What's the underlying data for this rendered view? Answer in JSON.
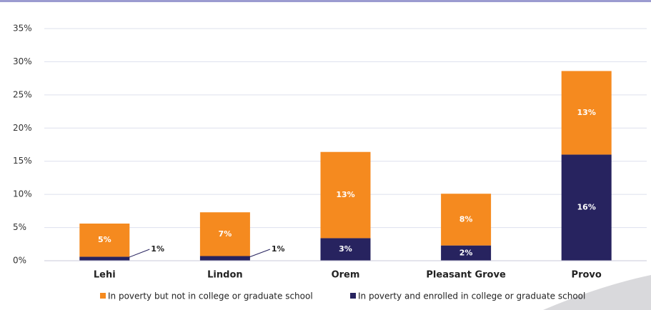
{
  "chart_data": {
    "type": "stacked-bar",
    "categories": [
      "Lehi",
      "Lindon",
      "Orem",
      "Pleasant Grove",
      "Provo"
    ],
    "series": [
      {
        "name": "In poverty and enrolled in college or graduate school",
        "color": "#27235f",
        "values": [
          0.6,
          0.7,
          3.4,
          2.3,
          16.0
        ],
        "value_labels": [
          "1%",
          "1%",
          "3%",
          "2%",
          "16%"
        ]
      },
      {
        "name": "In poverty but not in college or graduate school",
        "color": "#f58a1f",
        "values": [
          5.0,
          6.6,
          13.0,
          7.8,
          12.6
        ],
        "value_labels": [
          "5%",
          "7%",
          "13%",
          "8%",
          "13%"
        ]
      }
    ],
    "ylim": [
      0,
      35
    ],
    "yticks": [
      {
        "value": 0,
        "label": "0%"
      },
      {
        "value": 5,
        "label": "5%"
      },
      {
        "value": 10,
        "label": "10%"
      },
      {
        "value": 15,
        "label": "15%"
      },
      {
        "value": 20,
        "label": "20%"
      },
      {
        "value": 25,
        "label": "25%"
      },
      {
        "value": 30,
        "label": "30%"
      },
      {
        "value": 35,
        "label": "35%"
      }
    ],
    "grid": true
  }
}
